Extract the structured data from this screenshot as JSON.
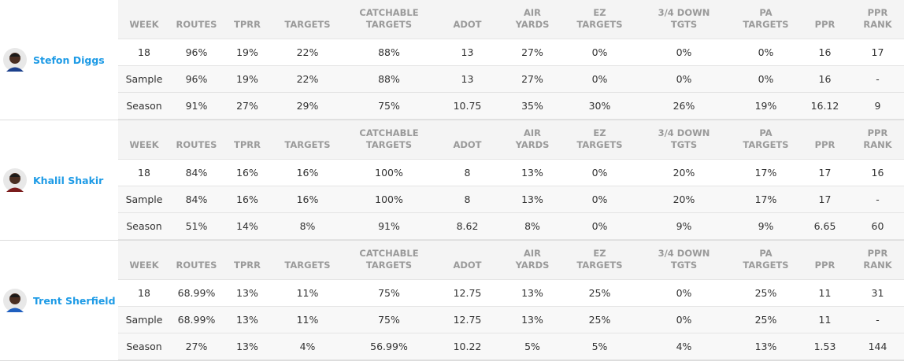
{
  "columns": [
    "WEEK",
    "ROUTES",
    "TPRR",
    "TARGETS",
    "CATCHABLE\nTARGETS",
    "ADOT",
    "AIR\nYARDS",
    "EZ\nTARGETS",
    "3/4 DOWN\nTGTS",
    "PA\nTARGETS",
    "PPR",
    "PPR\nRANK"
  ],
  "players": [
    {
      "name": "Stefon Diggs",
      "rows": [
        [
          "18",
          "96%",
          "19%",
          "22%",
          "88%",
          "13",
          "27%",
          "0%",
          "0%",
          "0%",
          "16",
          "17"
        ],
        [
          "Sample",
          "96%",
          "19%",
          "22%",
          "88%",
          "13",
          "27%",
          "0%",
          "0%",
          "0%",
          "16",
          "-"
        ],
        [
          "Season",
          "91%",
          "27%",
          "29%",
          "75%",
          "10.75",
          "35%",
          "30%",
          "26%",
          "19%",
          "16.12",
          "9"
        ]
      ]
    },
    {
      "name": "Khalil Shakir",
      "rows": [
        [
          "18",
          "84%",
          "16%",
          "16%",
          "100%",
          "8",
          "13%",
          "0%",
          "20%",
          "17%",
          "17",
          "16"
        ],
        [
          "Sample",
          "84%",
          "16%",
          "16%",
          "100%",
          "8",
          "13%",
          "0%",
          "20%",
          "17%",
          "17",
          "-"
        ],
        [
          "Season",
          "51%",
          "14%",
          "8%",
          "91%",
          "8.62",
          "8%",
          "0%",
          "9%",
          "9%",
          "6.65",
          "60"
        ]
      ]
    },
    {
      "name": "Trent Sherfield",
      "rows": [
        [
          "18",
          "68.99%",
          "13%",
          "11%",
          "75%",
          "12.75",
          "13%",
          "25%",
          "0%",
          "25%",
          "11",
          "31"
        ],
        [
          "Sample",
          "68.99%",
          "13%",
          "11%",
          "75%",
          "12.75",
          "13%",
          "25%",
          "0%",
          "25%",
          "11",
          "-"
        ],
        [
          "Season",
          "27%",
          "13%",
          "4%",
          "56.99%",
          "10.22",
          "5%",
          "5%",
          "4%",
          "13%",
          "1.53",
          "144"
        ]
      ]
    }
  ]
}
